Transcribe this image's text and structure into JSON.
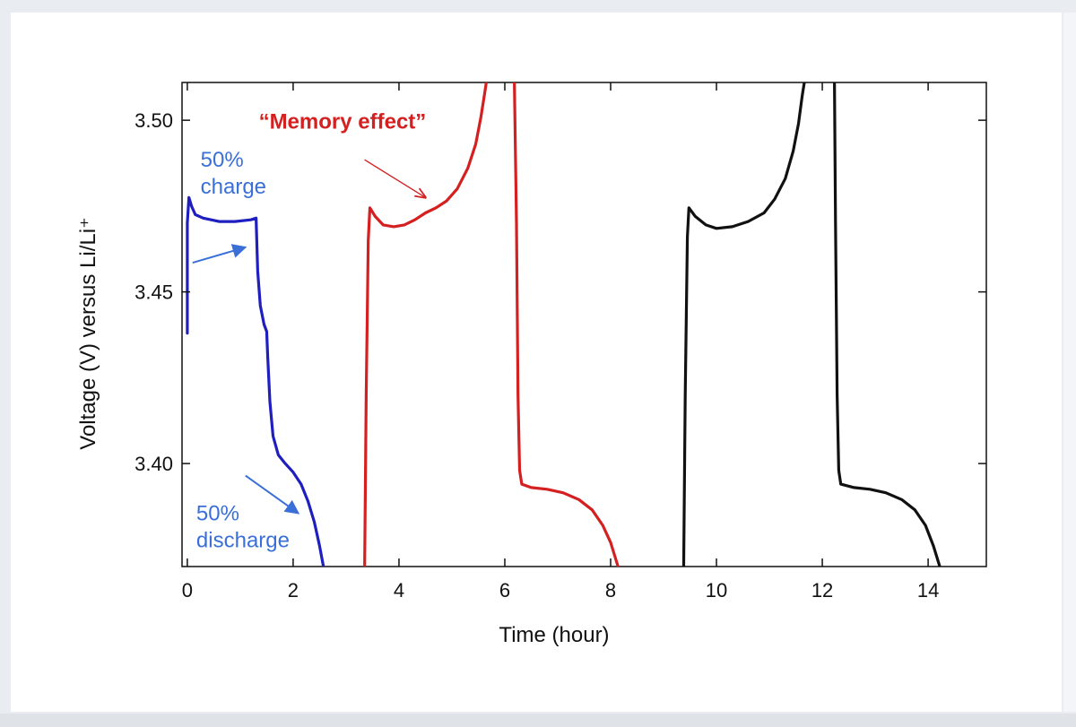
{
  "chart_data": {
    "type": "line",
    "title": "",
    "xlabel": "Time (hour)",
    "ylabel": "Voltage (V) versus Li/Li⁺",
    "xlim": [
      -0.1,
      15.1
    ],
    "ylim": [
      3.37,
      3.511
    ],
    "xticks": [
      0,
      2,
      4,
      6,
      8,
      10,
      12,
      14
    ],
    "yticks": [
      3.4,
      3.45,
      3.5
    ],
    "xtick_labels": [
      "0",
      "2",
      "4",
      "6",
      "8",
      "10",
      "12",
      "14"
    ],
    "ytick_labels": [
      "3.40",
      "3.45",
      "3.50"
    ],
    "grid": false,
    "series": [
      {
        "color": "#1f1fbf",
        "points": [
          [
            0.0,
            3.438
          ],
          [
            0.0,
            3.47
          ],
          [
            0.03,
            3.4775
          ],
          [
            0.08,
            3.475
          ],
          [
            0.15,
            3.4725
          ],
          [
            0.3,
            3.4715
          ],
          [
            0.6,
            3.4705
          ],
          [
            0.9,
            3.4705
          ],
          [
            1.2,
            3.471
          ],
          [
            1.3,
            3.4715
          ],
          [
            1.33,
            3.456
          ],
          [
            1.38,
            3.446
          ],
          [
            1.45,
            3.4405
          ],
          [
            1.5,
            3.4385
          ],
          [
            1.52,
            3.431
          ],
          [
            1.56,
            3.418
          ],
          [
            1.62,
            3.408
          ],
          [
            1.72,
            3.4025
          ],
          [
            1.85,
            3.4
          ],
          [
            2.0,
            3.3975
          ],
          [
            2.15,
            3.394
          ],
          [
            2.28,
            3.389
          ],
          [
            2.4,
            3.383
          ],
          [
            2.5,
            3.376
          ],
          [
            2.56,
            3.371
          ],
          [
            2.6,
            3.368
          ]
        ]
      },
      {
        "color": "#d42020",
        "points": [
          [
            3.35,
            3.368
          ],
          [
            3.38,
            3.42
          ],
          [
            3.42,
            3.465
          ],
          [
            3.45,
            3.4745
          ],
          [
            3.55,
            3.472
          ],
          [
            3.7,
            3.4695
          ],
          [
            3.9,
            3.469
          ],
          [
            4.1,
            3.4695
          ],
          [
            4.3,
            3.471
          ],
          [
            4.5,
            3.473
          ],
          [
            4.7,
            3.4745
          ],
          [
            4.9,
            3.4765
          ],
          [
            5.1,
            3.48
          ],
          [
            5.3,
            3.486
          ],
          [
            5.45,
            3.493
          ],
          [
            5.55,
            3.501
          ],
          [
            5.62,
            3.508
          ],
          [
            5.66,
            3.512
          ]
        ]
      },
      {
        "color": "#d42020",
        "points": [
          [
            6.18,
            3.512
          ],
          [
            6.22,
            3.47
          ],
          [
            6.25,
            3.42
          ],
          [
            6.28,
            3.398
          ],
          [
            6.32,
            3.394
          ],
          [
            6.5,
            3.393
          ],
          [
            6.8,
            3.3925
          ],
          [
            7.1,
            3.3915
          ],
          [
            7.4,
            3.3895
          ],
          [
            7.65,
            3.3865
          ],
          [
            7.85,
            3.382
          ],
          [
            8.0,
            3.377
          ],
          [
            8.1,
            3.372
          ],
          [
            8.18,
            3.368
          ]
        ]
      },
      {
        "color": "#111111",
        "points": [
          [
            9.38,
            3.368
          ],
          [
            9.41,
            3.42
          ],
          [
            9.45,
            3.466
          ],
          [
            9.48,
            3.4745
          ],
          [
            9.6,
            3.472
          ],
          [
            9.8,
            3.4695
          ],
          [
            10.0,
            3.4685
          ],
          [
            10.3,
            3.469
          ],
          [
            10.6,
            3.4705
          ],
          [
            10.9,
            3.473
          ],
          [
            11.1,
            3.477
          ],
          [
            11.3,
            3.483
          ],
          [
            11.45,
            3.491
          ],
          [
            11.55,
            3.499
          ],
          [
            11.62,
            3.507
          ],
          [
            11.67,
            3.512
          ]
        ]
      },
      {
        "color": "#111111",
        "points": [
          [
            12.23,
            3.512
          ],
          [
            12.25,
            3.47
          ],
          [
            12.28,
            3.42
          ],
          [
            12.31,
            3.398
          ],
          [
            12.35,
            3.394
          ],
          [
            12.6,
            3.393
          ],
          [
            12.9,
            3.3925
          ],
          [
            13.2,
            3.3915
          ],
          [
            13.5,
            3.3895
          ],
          [
            13.75,
            3.3865
          ],
          [
            13.95,
            3.382
          ],
          [
            14.1,
            3.376
          ],
          [
            14.2,
            3.371
          ],
          [
            14.26,
            3.368
          ]
        ]
      }
    ],
    "annotations": [
      {
        "lines": [
          "50%",
          "charge"
        ],
        "color": "#3a6fd8",
        "x": 0.25,
        "y": 3.4865,
        "arrow_from": [
          0.1,
          3.4585
        ],
        "arrow_to": [
          1.1,
          3.463
        ]
      },
      {
        "lines": [
          "50%",
          "discharge"
        ],
        "color": "#3a6fd8",
        "x": 0.17,
        "y": 3.3835,
        "arrow_from": [
          1.1,
          3.3965
        ],
        "arrow_to": [
          2.1,
          3.3855
        ]
      },
      {
        "lines": [
          "“Memory effect”"
        ],
        "color": "#d42020",
        "bold": true,
        "x": 1.35,
        "y": 3.4975,
        "arrow_from": [
          3.35,
          3.4885
        ],
        "arrow_to": [
          4.5,
          3.4775
        ]
      }
    ]
  }
}
